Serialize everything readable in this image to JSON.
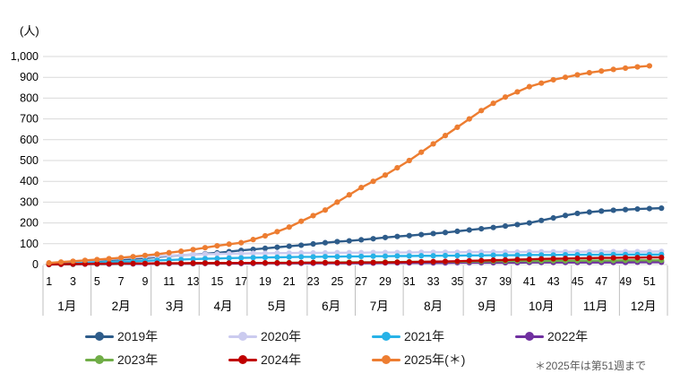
{
  "chart_data": {
    "type": "line",
    "title": "",
    "y_unit_label": "(人)",
    "ylabel": "",
    "xlabel": "",
    "ylim": [
      0,
      1000
    ],
    "y_tick_step": 100,
    "y_tick_labels": [
      "0",
      "100",
      "200",
      "300",
      "400",
      "500",
      "600",
      "700",
      "800",
      "900",
      "1,000"
    ],
    "grid": true,
    "legend_position": "bottom",
    "x_week_ticks": [
      1,
      3,
      5,
      7,
      9,
      11,
      13,
      15,
      17,
      19,
      21,
      23,
      25,
      27,
      29,
      31,
      33,
      35,
      37,
      39,
      41,
      43,
      45,
      47,
      49,
      51
    ],
    "months": [
      {
        "label": "1月",
        "weeks": 4
      },
      {
        "label": "2月",
        "weeks": 5
      },
      {
        "label": "3月",
        "weeks": 4
      },
      {
        "label": "4月",
        "weeks": 4
      },
      {
        "label": "5月",
        "weeks": 5
      },
      {
        "label": "6月",
        "weeks": 4
      },
      {
        "label": "7月",
        "weeks": 4
      },
      {
        "label": "8月",
        "weeks": 5
      },
      {
        "label": "9月",
        "weeks": 4
      },
      {
        "label": "10月",
        "weeks": 5
      },
      {
        "label": "11月",
        "weeks": 4
      },
      {
        "label": "12月",
        "weeks": 4
      }
    ],
    "series": [
      {
        "name": "2019年",
        "color": "#2E5C8A",
        "values": [
          4,
          8,
          12,
          16,
          19,
          22,
          25,
          28,
          31,
          36,
          41,
          45,
          48,
          52,
          56,
          62,
          68,
          73,
          78,
          83,
          88,
          93,
          99,
          105,
          110,
          114,
          119,
          124,
          130,
          135,
          139,
          144,
          149,
          154,
          160,
          166,
          172,
          178,
          185,
          192,
          200,
          212,
          224,
          236,
          246,
          252,
          257,
          261,
          264,
          267,
          269,
          271
        ]
      },
      {
        "name": "2020年",
        "color": "#CBCBEF",
        "values": [
          6,
          10,
          14,
          18,
          22,
          26,
          30,
          34,
          37,
          40,
          43,
          46,
          48,
          50,
          51,
          52,
          53,
          54,
          54,
          55,
          55,
          56,
          56,
          56,
          57,
          57,
          57,
          58,
          58,
          58,
          58,
          59,
          59,
          59,
          59,
          60,
          60,
          60,
          60,
          60,
          61,
          61,
          61,
          61,
          61,
          62,
          62,
          62,
          62,
          62,
          62,
          63
        ]
      },
      {
        "name": "2021年",
        "color": "#27B2E7",
        "values": [
          2,
          4,
          6,
          8,
          10,
          12,
          14,
          16,
          18,
          20,
          22,
          24,
          26,
          28,
          29,
          31,
          32,
          33,
          34,
          35,
          36,
          37,
          37,
          38,
          38,
          39,
          39,
          40,
          40,
          41,
          41,
          42,
          42,
          43,
          43,
          44,
          44,
          45,
          45,
          45,
          46,
          46,
          46,
          47,
          47,
          47,
          47,
          48,
          48,
          48,
          48,
          48
        ]
      },
      {
        "name": "2022年",
        "color": "#7030A0",
        "values": [
          0,
          1,
          1,
          2,
          2,
          2,
          3,
          3,
          3,
          4,
          4,
          4,
          4,
          5,
          5,
          5,
          5,
          5,
          6,
          6,
          6,
          6,
          6,
          7,
          7,
          7,
          7,
          7,
          8,
          8,
          8,
          8,
          8,
          8,
          9,
          9,
          9,
          9,
          9,
          9,
          10,
          10,
          10,
          10,
          10,
          10,
          10,
          10,
          10,
          11,
          11,
          11
        ]
      },
      {
        "name": "2023年",
        "color": "#70AD47",
        "values": [
          1,
          2,
          2,
          3,
          3,
          4,
          4,
          5,
          5,
          5,
          6,
          6,
          6,
          7,
          7,
          7,
          8,
          8,
          8,
          9,
          9,
          9,
          10,
          10,
          10,
          11,
          11,
          11,
          12,
          12,
          13,
          13,
          13,
          14,
          14,
          15,
          15,
          16,
          16,
          17,
          17,
          17,
          18,
          18,
          18,
          19,
          19,
          19,
          20,
          20,
          20,
          20
        ]
      },
      {
        "name": "2024年",
        "color": "#C00000",
        "values": [
          1,
          2,
          3,
          3,
          4,
          4,
          5,
          5,
          5,
          6,
          6,
          6,
          7,
          7,
          7,
          7,
          8,
          8,
          8,
          8,
          8,
          9,
          9,
          9,
          9,
          9,
          10,
          10,
          10,
          11,
          12,
          13,
          14,
          15,
          16,
          18,
          19,
          21,
          22,
          24,
          25,
          27,
          28,
          29,
          30,
          31,
          32,
          32,
          33,
          33,
          34,
          34
        ]
      },
      {
        "name": "2025年(＊)",
        "color": "#ED7D31",
        "values": [
          8,
          12,
          16,
          20,
          24,
          28,
          33,
          38,
          44,
          50,
          57,
          64,
          72,
          81,
          90,
          98,
          105,
          120,
          138,
          158,
          180,
          208,
          235,
          262,
          300,
          335,
          370,
          400,
          430,
          465,
          500,
          540,
          580,
          620,
          660,
          700,
          740,
          775,
          805,
          830,
          855,
          872,
          888,
          900,
          912,
          922,
          930,
          938,
          944,
          950,
          955
        ]
      }
    ],
    "footnote": "＊2025年は第51週まで"
  }
}
